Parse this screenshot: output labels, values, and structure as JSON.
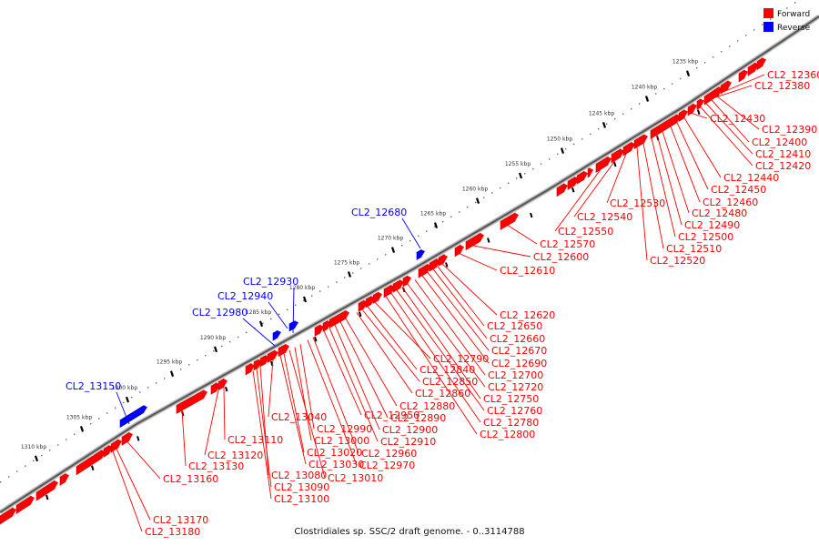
{
  "caption": "Clostridiales sp. SSC/2 draft genome. - 0..3114788",
  "legend": [
    {
      "label": "Forward",
      "color": "#ff0000"
    },
    {
      "label": "Reverse",
      "color": "#0000ff"
    }
  ],
  "colors": {
    "forward": "#ff0000",
    "reverse": "#0000ff",
    "backbone": "#888888"
  },
  "scale": {
    "unit": "kbp",
    "ticks": [
      1235,
      1240,
      1245,
      1250,
      1255,
      1260,
      1265,
      1270,
      1275,
      1280,
      1285,
      1290,
      1295,
      1300,
      1305,
      1310
    ],
    "tick_labels": [
      "1235 kbp",
      "1240 kbp",
      "1245 kbp",
      "1250 kbp",
      "1255 kbp",
      "1260 kbp",
      "1265 kbp",
      "1270 kbp",
      "1275 kbp",
      "1280 kbp",
      "1285 kbp",
      "1290 kbp",
      "1295 kbp",
      "1300 kbp",
      "1305 kbp",
      "1310 kbp"
    ]
  },
  "genes": [
    {
      "id": "CL2_12360",
      "strand": "forward"
    },
    {
      "id": "CL2_12380",
      "strand": "forward"
    },
    {
      "id": "CL2_12390",
      "strand": "forward"
    },
    {
      "id": "CL2_12400",
      "strand": "forward"
    },
    {
      "id": "CL2_12410",
      "strand": "forward"
    },
    {
      "id": "CL2_12420",
      "strand": "forward"
    },
    {
      "id": "CL2_12430",
      "strand": "forward"
    },
    {
      "id": "CL2_12440",
      "strand": "forward"
    },
    {
      "id": "CL2_12450",
      "strand": "forward"
    },
    {
      "id": "CL2_12460",
      "strand": "forward"
    },
    {
      "id": "CL2_12480",
      "strand": "forward"
    },
    {
      "id": "CL2_12490",
      "strand": "forward"
    },
    {
      "id": "CL2_12500",
      "strand": "forward"
    },
    {
      "id": "CL2_12510",
      "strand": "forward"
    },
    {
      "id": "CL2_12520",
      "strand": "forward"
    },
    {
      "id": "CL2_12530",
      "strand": "forward"
    },
    {
      "id": "CL2_12540",
      "strand": "forward"
    },
    {
      "id": "CL2_12550",
      "strand": "forward"
    },
    {
      "id": "CL2_12570",
      "strand": "forward"
    },
    {
      "id": "CL2_12600",
      "strand": "forward"
    },
    {
      "id": "CL2_12610",
      "strand": "forward"
    },
    {
      "id": "CL2_12620",
      "strand": "forward"
    },
    {
      "id": "CL2_12650",
      "strand": "forward"
    },
    {
      "id": "CL2_12660",
      "strand": "forward"
    },
    {
      "id": "CL2_12670",
      "strand": "forward"
    },
    {
      "id": "CL2_12680",
      "strand": "reverse"
    },
    {
      "id": "CL2_12690",
      "strand": "forward"
    },
    {
      "id": "CL2_12700",
      "strand": "forward"
    },
    {
      "id": "CL2_12720",
      "strand": "forward"
    },
    {
      "id": "CL2_12750",
      "strand": "forward"
    },
    {
      "id": "CL2_12760",
      "strand": "forward"
    },
    {
      "id": "CL2_12780",
      "strand": "forward"
    },
    {
      "id": "CL2_12790",
      "strand": "forward"
    },
    {
      "id": "CL2_12800",
      "strand": "forward"
    },
    {
      "id": "CL2_12840",
      "strand": "forward"
    },
    {
      "id": "CL2_12850",
      "strand": "forward"
    },
    {
      "id": "CL2_12860",
      "strand": "forward"
    },
    {
      "id": "CL2_12880",
      "strand": "forward"
    },
    {
      "id": "CL2_12890",
      "strand": "forward"
    },
    {
      "id": "CL2_12900",
      "strand": "forward"
    },
    {
      "id": "CL2_12910",
      "strand": "forward"
    },
    {
      "id": "CL2_12930",
      "strand": "reverse"
    },
    {
      "id": "CL2_12940",
      "strand": "reverse"
    },
    {
      "id": "CL2_12950",
      "strand": "forward"
    },
    {
      "id": "CL2_12960",
      "strand": "forward"
    },
    {
      "id": "CL2_12970",
      "strand": "forward"
    },
    {
      "id": "CL2_12980",
      "strand": "reverse"
    },
    {
      "id": "CL2_12990",
      "strand": "forward"
    },
    {
      "id": "CL2_13000",
      "strand": "forward"
    },
    {
      "id": "CL2_13010",
      "strand": "forward"
    },
    {
      "id": "CL2_13020",
      "strand": "forward"
    },
    {
      "id": "CL2_13030",
      "strand": "forward"
    },
    {
      "id": "CL2_13040",
      "strand": "forward"
    },
    {
      "id": "CL2_13080",
      "strand": "forward"
    },
    {
      "id": "CL2_13090",
      "strand": "forward"
    },
    {
      "id": "CL2_13100",
      "strand": "forward"
    },
    {
      "id": "CL2_13110",
      "strand": "forward"
    },
    {
      "id": "CL2_13120",
      "strand": "forward"
    },
    {
      "id": "CL2_13130",
      "strand": "forward"
    },
    {
      "id": "CL2_13150",
      "strand": "reverse"
    },
    {
      "id": "CL2_13160",
      "strand": "forward"
    },
    {
      "id": "CL2_13170",
      "strand": "forward"
    },
    {
      "id": "CL2_13180",
      "strand": "forward"
    }
  ]
}
